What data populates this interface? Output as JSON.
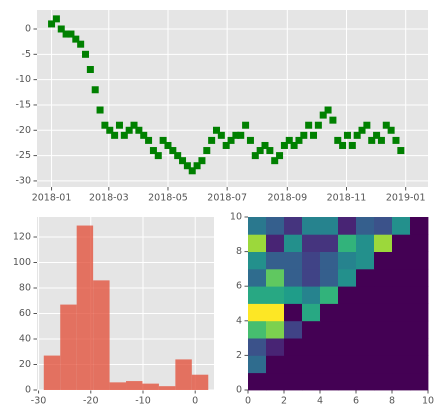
{
  "chart_data": [
    {
      "type": "scatter",
      "marker": "square",
      "color": "#008000",
      "grid": true,
      "x": [
        "2018-01-01",
        "2018-01-06",
        "2018-01-11",
        "2018-01-16",
        "2018-01-21",
        "2018-01-26",
        "2018-01-31",
        "2018-02-05",
        "2018-02-10",
        "2018-02-15",
        "2018-02-20",
        "2018-02-25",
        "2018-03-02",
        "2018-03-07",
        "2018-03-12",
        "2018-03-17",
        "2018-03-22",
        "2018-03-27",
        "2018-04-01",
        "2018-04-06",
        "2018-04-11",
        "2018-04-16",
        "2018-04-21",
        "2018-04-26",
        "2018-05-01",
        "2018-05-06",
        "2018-05-11",
        "2018-05-16",
        "2018-05-21",
        "2018-05-26",
        "2018-05-31",
        "2018-06-05",
        "2018-06-10",
        "2018-06-15",
        "2018-06-20",
        "2018-06-25",
        "2018-06-30",
        "2018-07-05",
        "2018-07-10",
        "2018-07-15",
        "2018-07-20",
        "2018-07-25",
        "2018-07-30",
        "2018-08-04",
        "2018-08-09",
        "2018-08-14",
        "2018-08-19",
        "2018-08-24",
        "2018-08-29",
        "2018-09-03",
        "2018-09-08",
        "2018-09-13",
        "2018-09-18",
        "2018-09-23",
        "2018-09-28",
        "2018-10-03",
        "2018-10-08",
        "2018-10-13",
        "2018-10-18",
        "2018-10-23",
        "2018-10-28",
        "2018-11-02",
        "2018-11-07",
        "2018-11-12",
        "2018-11-17",
        "2018-11-22",
        "2018-11-27",
        "2018-12-02",
        "2018-12-07",
        "2018-12-12",
        "2018-12-17",
        "2018-12-22",
        "2018-12-27"
      ],
      "values": [
        1,
        2,
        0,
        -1,
        -1,
        -2,
        -3,
        -5,
        -8,
        -12,
        -16,
        -19,
        -20,
        -21,
        -19,
        -21,
        -20,
        -19,
        -20,
        -21,
        -22,
        -24,
        -25,
        -22,
        -23,
        -24,
        -25,
        -26,
        -27,
        -28,
        -27,
        -26,
        -24,
        -22,
        -20,
        -21,
        -23,
        -22,
        -21,
        -21,
        -19,
        -22,
        -25,
        -24,
        -23,
        -24,
        -26,
        -25,
        -23,
        -22,
        -23,
        -22,
        -21,
        -19,
        -21,
        -19,
        -17,
        -16,
        -18,
        -22,
        -23,
        -21,
        -23,
        -21,
        -20,
        -19,
        -22,
        -21,
        -22,
        -19,
        -20,
        -22,
        -24
      ],
      "xlim": [
        "2017-12-17",
        "2019-01-24"
      ],
      "xticks": [
        {
          "value": "2018-01-01",
          "label": "2018-01"
        },
        {
          "value": "2018-03-01",
          "label": "2018-03"
        },
        {
          "value": "2018-05-01",
          "label": "2018-05"
        },
        {
          "value": "2018-07-01",
          "label": "2018-07"
        },
        {
          "value": "2018-09-01",
          "label": "2018-09"
        },
        {
          "value": "2018-11-01",
          "label": "2018-11"
        },
        {
          "value": "2019-01-01",
          "label": "2019-01"
        }
      ],
      "ylim": [
        -31.2,
        3.75
      ],
      "yticks": [
        0,
        -5,
        -10,
        -15,
        -20,
        -25,
        -30
      ]
    },
    {
      "type": "histogram",
      "color": "#E24A33",
      "alpha": 0.75,
      "grid": true,
      "bins": [
        -29,
        -25.85,
        -22.7,
        -19.55,
        -16.4,
        -13.25,
        -10.1,
        -6.95,
        -3.8,
        -0.65,
        2.5
      ],
      "values": [
        27,
        67,
        129,
        86,
        6,
        7,
        5,
        3,
        24,
        12
      ],
      "xlim": [
        -30.3,
        3.6
      ],
      "ylim": [
        0,
        135.7
      ],
      "xticks": [
        -30,
        -20,
        -10,
        0
      ],
      "yticks": [
        0,
        20,
        40,
        60,
        80,
        100,
        120
      ]
    },
    {
      "type": "heatmap",
      "colormap": "viridis",
      "vlim": [
        0,
        1
      ],
      "z": [
        [
          0,
          0,
          0,
          0,
          0,
          0,
          0,
          0,
          0,
          0
        ],
        [
          0.35,
          0,
          0,
          0,
          0,
          0,
          0,
          0,
          0,
          0
        ],
        [
          0.25,
          0.1,
          0,
          0,
          0,
          0,
          0,
          0,
          0,
          0
        ],
        [
          0.7,
          0.8,
          0.2,
          0,
          0,
          0,
          0,
          0,
          0,
          0
        ],
        [
          1,
          1,
          0,
          0.6,
          0,
          0,
          0,
          0,
          0,
          0
        ],
        [
          0.6,
          0.6,
          0.55,
          0.45,
          0.65,
          0,
          0,
          0,
          0,
          0
        ],
        [
          0.35,
          0.75,
          0.3,
          0.2,
          0.3,
          0.5,
          0,
          0,
          0,
          0
        ],
        [
          0.5,
          0.3,
          0.3,
          0.2,
          0.3,
          0.45,
          0.5,
          0,
          0,
          0
        ],
        [
          0.85,
          0.1,
          0.5,
          0.15,
          0.15,
          0.65,
          0.5,
          0.85,
          0,
          0
        ],
        [
          0.4,
          0.3,
          0.15,
          0.45,
          0.45,
          0.1,
          0.3,
          0.25,
          0.5,
          0
        ]
      ],
      "xlim": [
        0,
        10
      ],
      "ylim": [
        0,
        10
      ],
      "xticks": [
        0,
        2,
        4,
        6,
        8,
        10
      ],
      "yticks": [
        0,
        2,
        4,
        6,
        8,
        10
      ]
    }
  ]
}
